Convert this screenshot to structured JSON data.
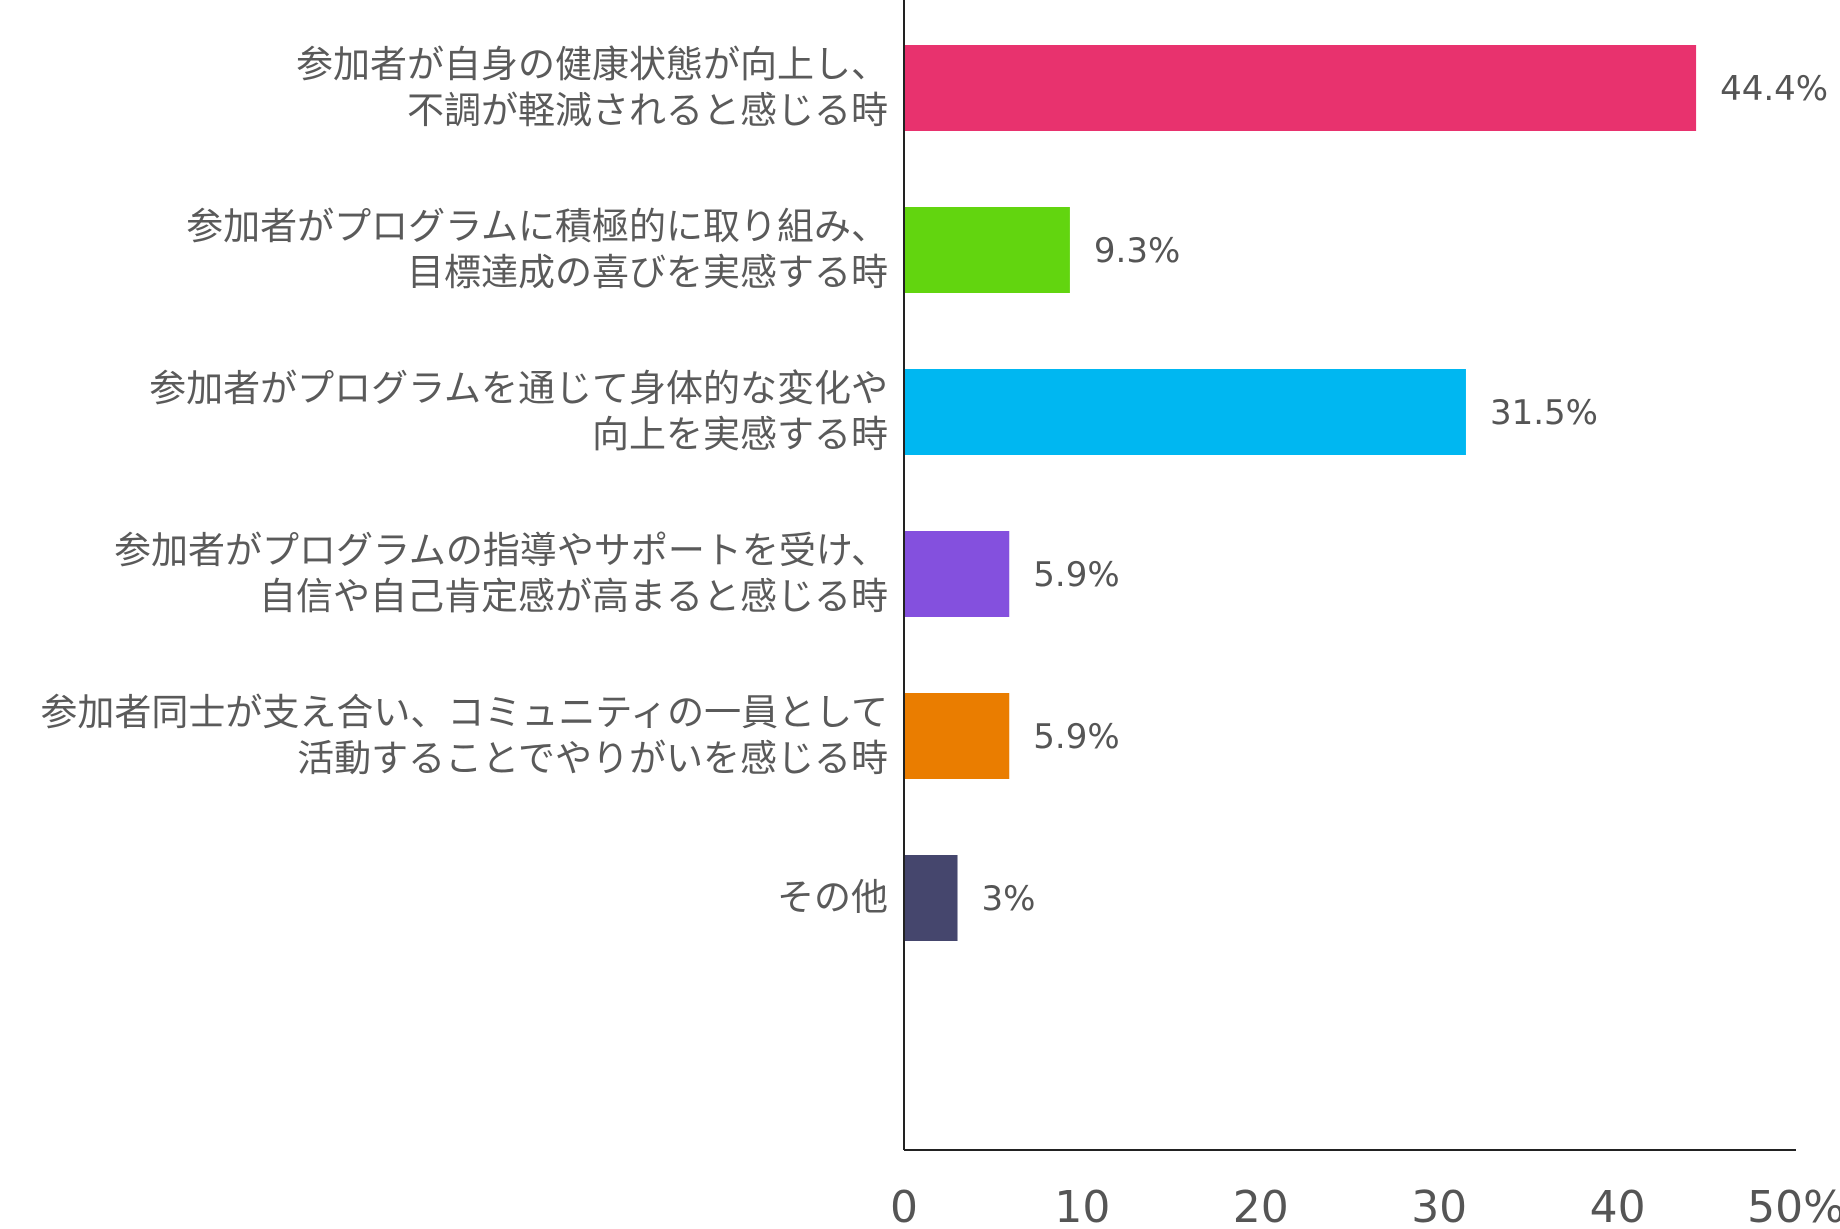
{
  "chart_data": {
    "type": "bar",
    "orientation": "horizontal",
    "categories": [
      [
        "参加者が自身の健康状態が向上し、",
        "不調が軽減されると感じる時"
      ],
      [
        "参加者がプログラムに積極的に取り組み、",
        "目標達成の喜びを実感する時"
      ],
      [
        "参加者がプログラムを通じて身体的な変化や",
        "向上を実感する時"
      ],
      [
        "参加者がプログラムの指導やサポートを受け、",
        "自信や自己肯定感が高まると感じる時"
      ],
      [
        "参加者同士が支え合い、コミュニティの一員として",
        "活動することでやりがいを感じる時"
      ],
      [
        "その他"
      ]
    ],
    "values": [
      44.4,
      9.3,
      31.5,
      5.9,
      5.9,
      3
    ],
    "value_labels": [
      "44.4%",
      "9.3%",
      "31.5%",
      "5.9%",
      "5.9%",
      "3%"
    ],
    "colors": [
      "#e8326e",
      "#62d50f",
      "#00b7f1",
      "#8450de",
      "#ea7d00",
      "#45466d"
    ],
    "xlim": [
      0,
      50
    ],
    "x_ticks": [
      0,
      10,
      20,
      30,
      40,
      50
    ],
    "x_tick_labels": [
      "0",
      "10",
      "20",
      "30",
      "40",
      "50%"
    ],
    "grid": false,
    "axis_color": "#222222"
  }
}
